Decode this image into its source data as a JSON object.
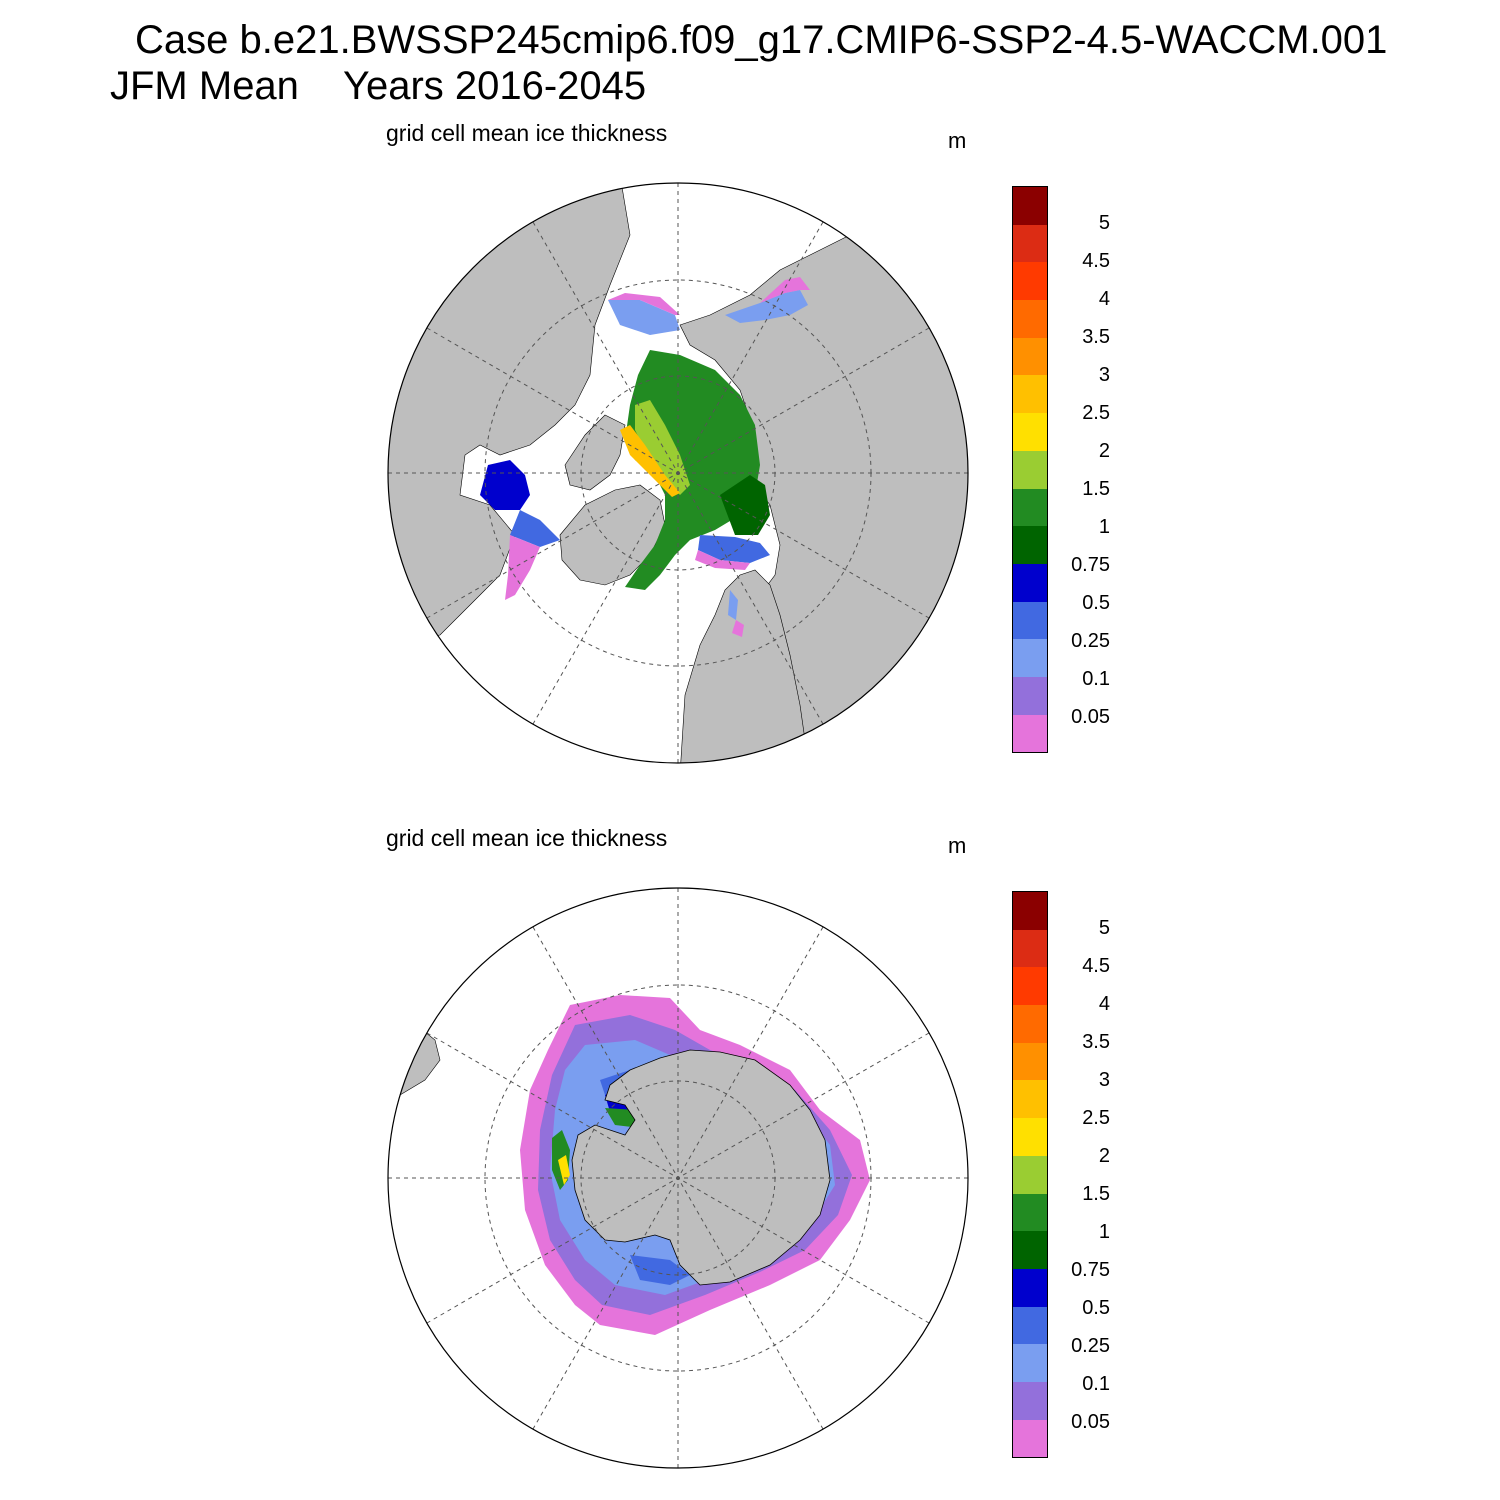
{
  "title": {
    "case_line": "Case b.e21.BWSSP245cmip6.f09_g17.CMIP6-SSP2-4.5-WACCM.001",
    "season": "JFM Mean",
    "years": "Years 2016-2045"
  },
  "panels": [
    {
      "name": "north",
      "title": "grid cell mean ice thickness",
      "units": "m"
    },
    {
      "name": "south",
      "title": "grid cell mean ice thickness",
      "units": "m"
    }
  ],
  "colorbar": {
    "levels": [
      "0.05",
      "0.1",
      "0.25",
      "0.5",
      "0.75",
      "1",
      "1.5",
      "2",
      "2.5",
      "3",
      "3.5",
      "4",
      "4.5",
      "5"
    ],
    "colors": [
      "#e574db",
      "#9370db",
      "#7a9ef0",
      "#4169e1",
      "#0000cd",
      "#006400",
      "#228b22",
      "#9acd32",
      "#ffe000",
      "#ffc000",
      "#ff9000",
      "#ff6a00",
      "#ff3a00",
      "#dc2c14",
      "#8b0000"
    ]
  },
  "colors": {
    "land": "#bebebe",
    "ocean": "#ffffff"
  }
}
